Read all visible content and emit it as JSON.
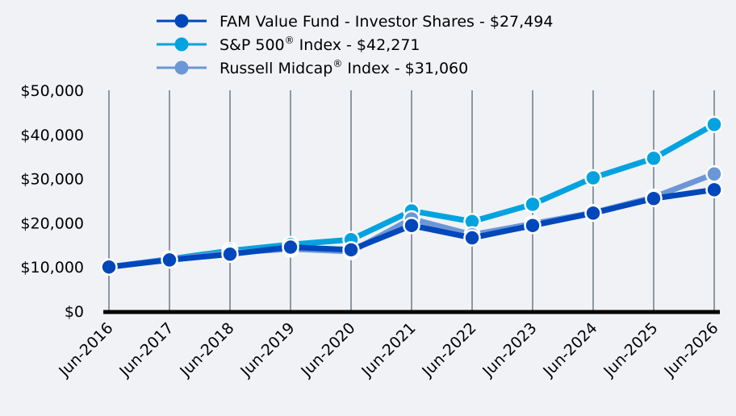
{
  "chart_data": {
    "type": "line",
    "categories": [
      "Jun-2016",
      "Jun-2017",
      "Jun-2018",
      "Jun-2019",
      "Jun-2020",
      "Jun-2021",
      "Jun-2022",
      "Jun-2023",
      "Jun-2024",
      "Jun-2025",
      "Jun-2026"
    ],
    "ylim": [
      0,
      50000
    ],
    "yticks": [
      0,
      10000,
      20000,
      30000,
      40000,
      50000
    ],
    "ytick_labels": [
      "$0",
      "$10,000",
      "$20,000",
      "$30,000",
      "$40,000",
      "$50,000"
    ],
    "grid": "vertical",
    "legend_position": "top",
    "series": [
      {
        "name": "S&P 500® Index - $42,271",
        "legend_main": "S&P 500",
        "legend_rest": " Index - $42,271",
        "color": "#00a3e0",
        "values": [
          10000,
          11800,
          13700,
          15100,
          16200,
          22700,
          20300,
          24200,
          30200,
          34600,
          42271
        ]
      },
      {
        "name": "Russell Midcap® Index - $31,060",
        "legend_main": "Russell Midcap",
        "legend_rest": " Index - $31,060",
        "color": "#6b97d6",
        "values": [
          10000,
          11700,
          13200,
          14100,
          13500,
          20900,
          17300,
          19800,
          22300,
          25800,
          31060
        ]
      },
      {
        "name": "FAM Value Fund - Investor Shares - $27,494",
        "legend_main": "FAM Value Fund - Investor Shares - $27,494",
        "legend_rest": "",
        "color": "#0047bb",
        "values": [
          10000,
          11600,
          12900,
          14500,
          13900,
          19400,
          16600,
          19400,
          22200,
          25500,
          27494
        ]
      }
    ],
    "legend_order": [
      2,
      0,
      1
    ]
  }
}
